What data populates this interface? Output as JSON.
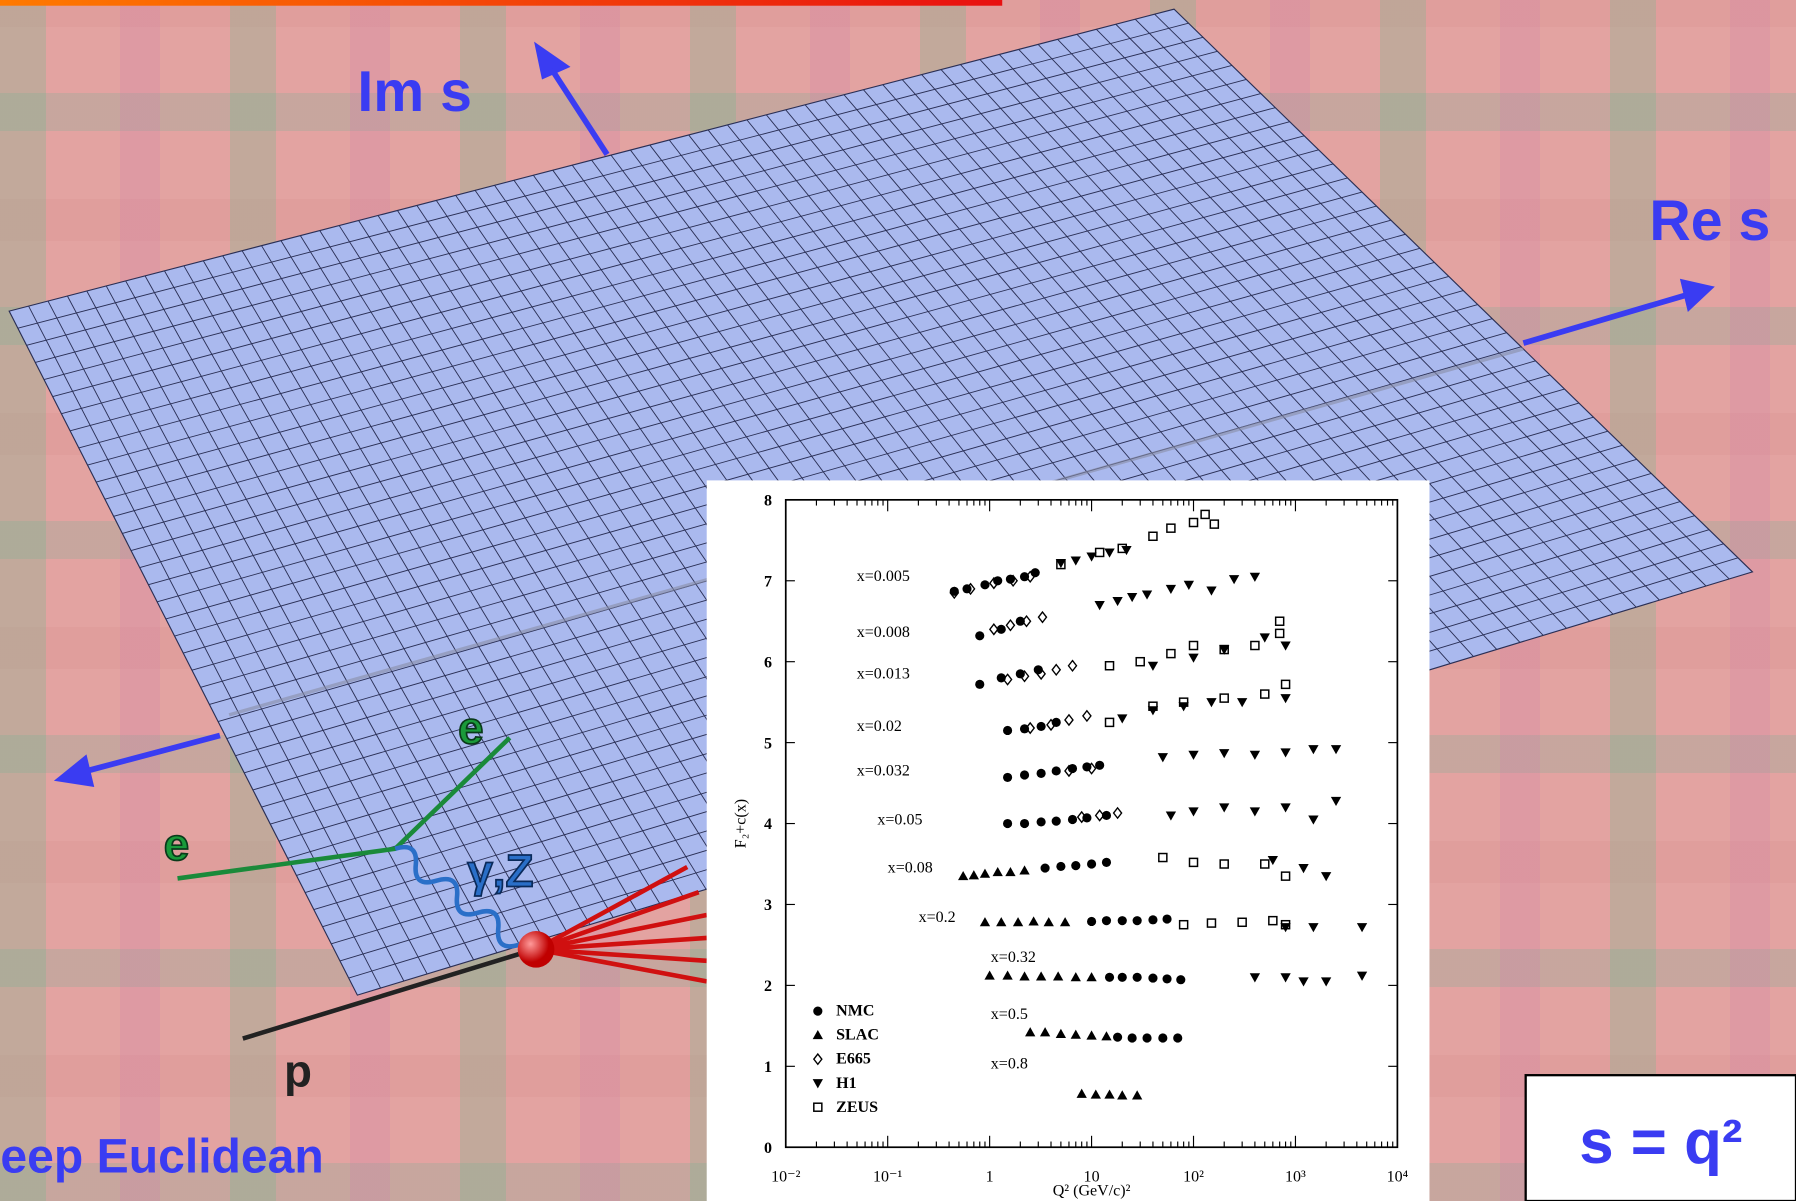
{
  "slide": {
    "im_label": "Im s",
    "re_label": "Re s",
    "electron_in": "e",
    "electron_out": "e",
    "boson": "γ,Z",
    "proton": "p",
    "region": "Deep Euclidean",
    "formula": "s = q²"
  },
  "chart_data": {
    "type": "scatter",
    "xlabel": "Q² (GeV/c)²",
    "ylabel": "F₂+c(x)",
    "xscale": "log",
    "xlim": [
      0.01,
      10000
    ],
    "ylim": [
      0,
      8
    ],
    "xticks": [
      {
        "value": 0.01,
        "label": "10⁻²"
      },
      {
        "value": 0.1,
        "label": "10⁻¹"
      },
      1,
      10,
      {
        "value": 100,
        "label": "10²"
      },
      {
        "value": 1000,
        "label": "10³"
      },
      {
        "value": 10000,
        "label": "10⁴"
      }
    ],
    "yticks": [
      0,
      1,
      2,
      3,
      4,
      5,
      6,
      7,
      8
    ],
    "legend": "lower left",
    "annotations": [
      "x=0.005",
      "x=0.008",
      "x=0.013",
      "x=0.02",
      "x=0.032",
      "x=0.05",
      "x=0.08",
      "x=0.2",
      "x=0.32",
      "x=0.5",
      "x=0.8"
    ],
    "series": [
      {
        "name": "NMC",
        "marker": "circle",
        "color": "#000000",
        "x": [
          0.45,
          0.6,
          0.9,
          1.2,
          1.6,
          2.2,
          2.8,
          0.8,
          1.3,
          2.0,
          0.8,
          1.3,
          2.0,
          3.0,
          1.5,
          2.2,
          3.2,
          4.5,
          1.5,
          2.2,
          3.2,
          4.5,
          6.5,
          9,
          12,
          1.5,
          2.2,
          3.2,
          4.5,
          6.5,
          9,
          14,
          3.5,
          5,
          7,
          10,
          14,
          10,
          14,
          20,
          28,
          40,
          55,
          15,
          20,
          28,
          40,
          55,
          75,
          18,
          25,
          35,
          50,
          70
        ],
        "values": [
          6.87,
          6.9,
          6.95,
          7.0,
          7.02,
          7.05,
          7.1,
          6.32,
          6.4,
          6.5,
          5.72,
          5.8,
          5.85,
          5.9,
          5.15,
          5.17,
          5.2,
          5.25,
          4.57,
          4.6,
          4.62,
          4.65,
          4.68,
          4.7,
          4.72,
          4.0,
          4.0,
          4.02,
          4.03,
          4.05,
          4.07,
          4.1,
          3.45,
          3.47,
          3.48,
          3.5,
          3.52,
          2.79,
          2.8,
          2.8,
          2.8,
          2.81,
          2.82,
          2.1,
          2.1,
          2.1,
          2.09,
          2.08,
          2.07,
          1.36,
          1.35,
          1.35,
          1.35,
          1.35
        ]
      },
      {
        "name": "SLAC",
        "marker": "triangle",
        "color": "#000000",
        "x": [
          0.55,
          0.7,
          0.9,
          1.2,
          1.6,
          2.2,
          0.9,
          1.3,
          1.9,
          2.7,
          3.8,
          5.5,
          1.0,
          1.5,
          2.2,
          3.2,
          4.7,
          7,
          10,
          2.5,
          3.5,
          5,
          7,
          10,
          14,
          8,
          11,
          15,
          20,
          28
        ],
        "values": [
          3.35,
          3.36,
          3.38,
          3.4,
          3.4,
          3.42,
          2.78,
          2.78,
          2.78,
          2.79,
          2.78,
          2.78,
          2.12,
          2.12,
          2.11,
          2.11,
          2.11,
          2.1,
          2.1,
          1.42,
          1.42,
          1.4,
          1.39,
          1.38,
          1.37,
          0.66,
          0.65,
          0.65,
          0.64,
          0.64
        ]
      },
      {
        "name": "E665",
        "marker": "diamond",
        "color": "#000000",
        "x": [
          0.45,
          0.65,
          1.1,
          1.7,
          2.5,
          1.1,
          1.6,
          2.3,
          3.3,
          1.5,
          2.2,
          3.2,
          4.5,
          6.5,
          2.5,
          4,
          6,
          9,
          6,
          10,
          8,
          12,
          18
        ],
        "values": [
          6.85,
          6.9,
          6.97,
          7.0,
          7.05,
          6.4,
          6.45,
          6.5,
          6.55,
          5.78,
          5.82,
          5.85,
          5.9,
          5.95,
          5.18,
          5.22,
          5.28,
          5.33,
          4.65,
          4.68,
          4.08,
          4.1,
          4.13
        ]
      },
      {
        "name": "H1",
        "marker": "down-triangle",
        "color": "#000000",
        "x": [
          5,
          7,
          10,
          15,
          22,
          12,
          18,
          25,
          35,
          60,
          90,
          150,
          250,
          400,
          40,
          100,
          200,
          500,
          800,
          20,
          40,
          80,
          150,
          300,
          800,
          50,
          100,
          200,
          400,
          800,
          1500,
          2500,
          60,
          100,
          200,
          400,
          800,
          1500,
          2500,
          600,
          1200,
          2000,
          800,
          1500,
          4500,
          400,
          800,
          1200,
          2000,
          4500
        ],
        "values": [
          7.22,
          7.25,
          7.3,
          7.35,
          7.38,
          6.7,
          6.75,
          6.8,
          6.83,
          6.9,
          6.95,
          6.88,
          7.02,
          7.05,
          5.95,
          6.05,
          6.15,
          6.3,
          6.2,
          5.3,
          5.4,
          5.45,
          5.5,
          5.5,
          5.55,
          4.82,
          4.85,
          4.87,
          4.85,
          4.88,
          4.92,
          4.92,
          4.1,
          4.15,
          4.2,
          4.15,
          4.2,
          4.05,
          4.28,
          3.55,
          3.45,
          3.35,
          2.72,
          2.72,
          2.72,
          2.1,
          2.1,
          2.05,
          2.05,
          2.12
        ]
      },
      {
        "name": "ZEUS",
        "marker": "square",
        "color": "#000000",
        "x": [
          5,
          12,
          20,
          40,
          60,
          100,
          160,
          130,
          15,
          30,
          60,
          100,
          200,
          400,
          700,
          700,
          15,
          40,
          80,
          200,
          500,
          800,
          50,
          100,
          200,
          500,
          800,
          80,
          150,
          300,
          600,
          800
        ],
        "values": [
          7.2,
          7.35,
          7.4,
          7.55,
          7.65,
          7.72,
          7.7,
          7.82,
          5.95,
          6.0,
          6.1,
          6.2,
          6.15,
          6.2,
          6.35,
          6.5,
          5.25,
          5.45,
          5.5,
          5.55,
          5.6,
          5.72,
          3.58,
          3.52,
          3.5,
          3.5,
          3.35,
          2.75,
          2.77,
          2.78,
          2.8,
          2.75
        ]
      }
    ]
  }
}
